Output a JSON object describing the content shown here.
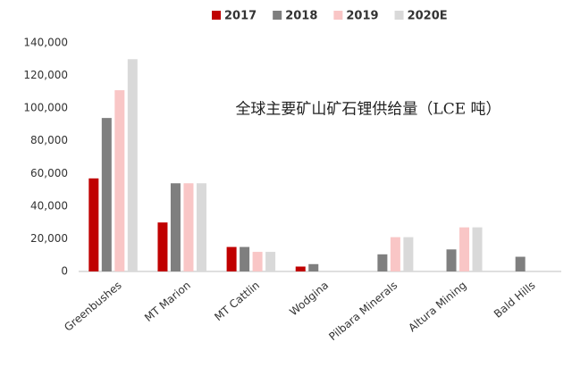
{
  "chart_data": {
    "type": "bar",
    "title": "全球主要矿山矿石锂供给量（LCE 吨）",
    "categories": [
      "Greenbushes",
      "MT Marion",
      "MT Cattlin",
      "Wodgina",
      "Pilbara Minerals",
      "Altura Mining",
      "Bald Hills"
    ],
    "series": [
      {
        "name": "2017",
        "color": "#c00000",
        "values": [
          57000,
          30000,
          15000,
          3000,
          null,
          null,
          null
        ]
      },
      {
        "name": "2018",
        "color": "#7f7f7f",
        "values": [
          94000,
          54000,
          15000,
          4500,
          10500,
          13500,
          9000
        ]
      },
      {
        "name": "2019",
        "color": "#f9c6c6",
        "values": [
          111000,
          54000,
          12000,
          null,
          21000,
          27000,
          null
        ]
      },
      {
        "name": "2020E",
        "color": "#d9d9d9",
        "values": [
          130000,
          54000,
          12000,
          null,
          21000,
          27000,
          null
        ]
      }
    ],
    "ylim": [
      0,
      140000
    ],
    "yticks": [
      0,
      {
        "value": 20000,
        "label": "20,000"
      },
      {
        "value": 40000,
        "label": "40,000"
      },
      {
        "value": 60000,
        "label": "60,000"
      },
      {
        "value": 80000,
        "label": "80,000"
      },
      {
        "value": 100000,
        "label": "100,000"
      },
      {
        "value": 120000,
        "label": "120,000"
      },
      {
        "value": 140000,
        "label": "140,000"
      }
    ]
  }
}
